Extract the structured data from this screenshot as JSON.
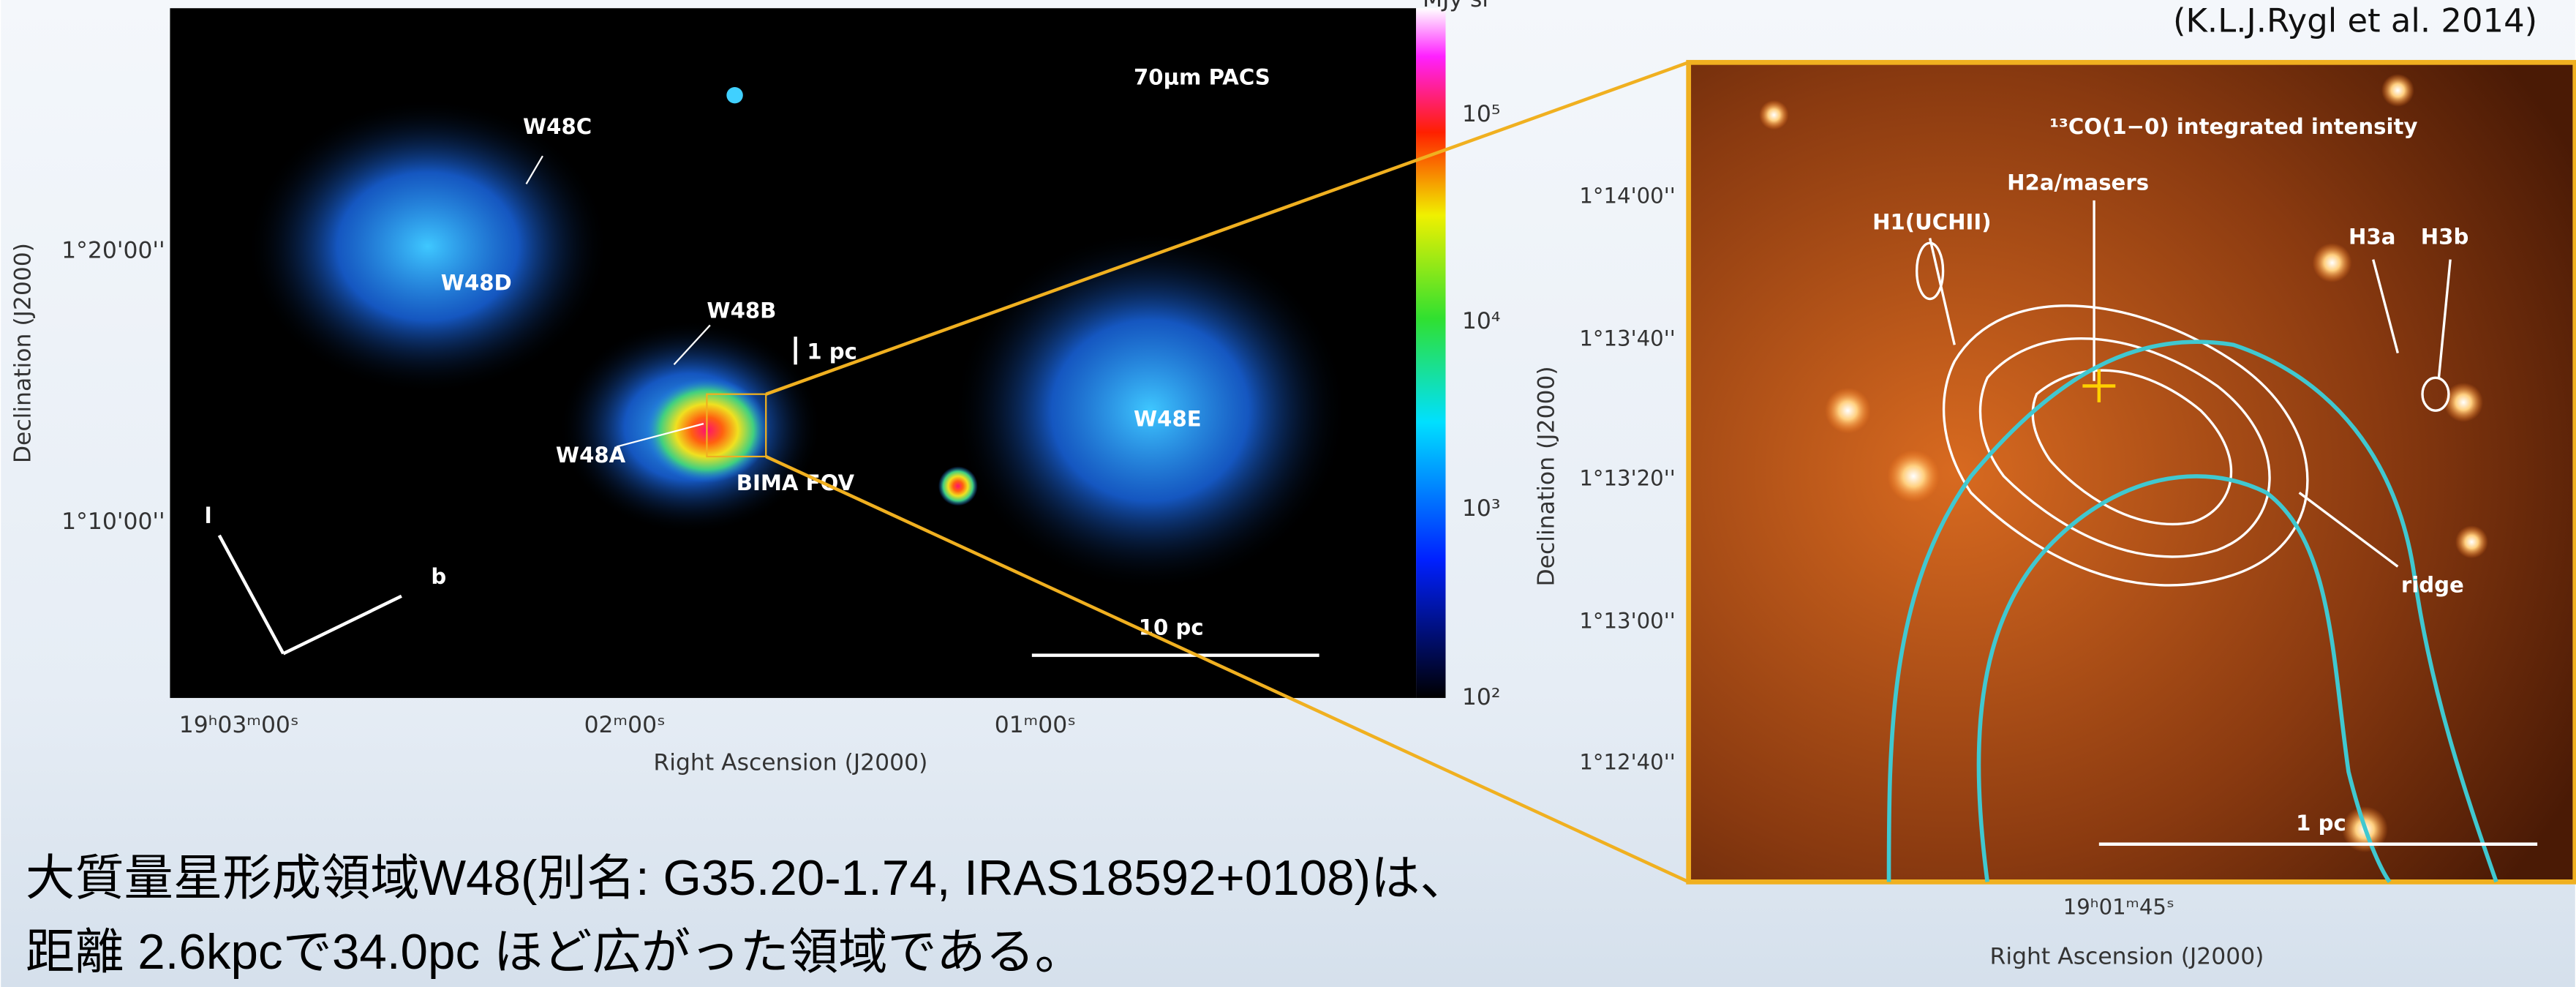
{
  "citation": "(K.L.J.Rygl et al. 2014)",
  "left_image": {
    "band_label": "70μm PACS",
    "regions": [
      "W48C",
      "W48D",
      "W48B",
      "W48A",
      "W48E"
    ],
    "fov_label": "BIMA FOV",
    "small_scale_label": "1 pc",
    "scale_label": "10 pc",
    "galactic_axes": [
      "l",
      "b"
    ],
    "x_ticks": [
      "19ʰ03ᵐ00ˢ",
      "02ᵐ00ˢ",
      "01ᵐ00ˢ"
    ],
    "y_ticks": [
      "1°20'00''",
      "1°10'00''"
    ],
    "colorbar_unit": "MJy sr",
    "colorbar_ticks": [
      "10²",
      "10³",
      "10⁴",
      "10⁵"
    ],
    "x_label": "Right Ascension (J2000)",
    "y_label": "Declination (J2000)"
  },
  "right_image": {
    "title": "¹³CO(1−0) integrated intensity",
    "labels": [
      "H1(UCHII)",
      "H2a/masers",
      "H3a",
      "H3b",
      "ridge"
    ],
    "scale_label": "1 pc",
    "y_ticks": [
      "1°14'00''",
      "1°13'40''",
      "1°13'20''",
      "1°13'00''",
      "1°12'40''"
    ],
    "x_ticks": [
      "19ʰ01ᵐ45ˢ"
    ],
    "x_label": "Right Ascension (J2000)",
    "y_label": "Declination (J2000)"
  },
  "caption": [
    "大質量星形成領域W48(別名: G35.20-1.74, IRAS18592+0108)は、",
    "距離 2.6kpcで34.0pc ほど広がった領域である。"
  ]
}
